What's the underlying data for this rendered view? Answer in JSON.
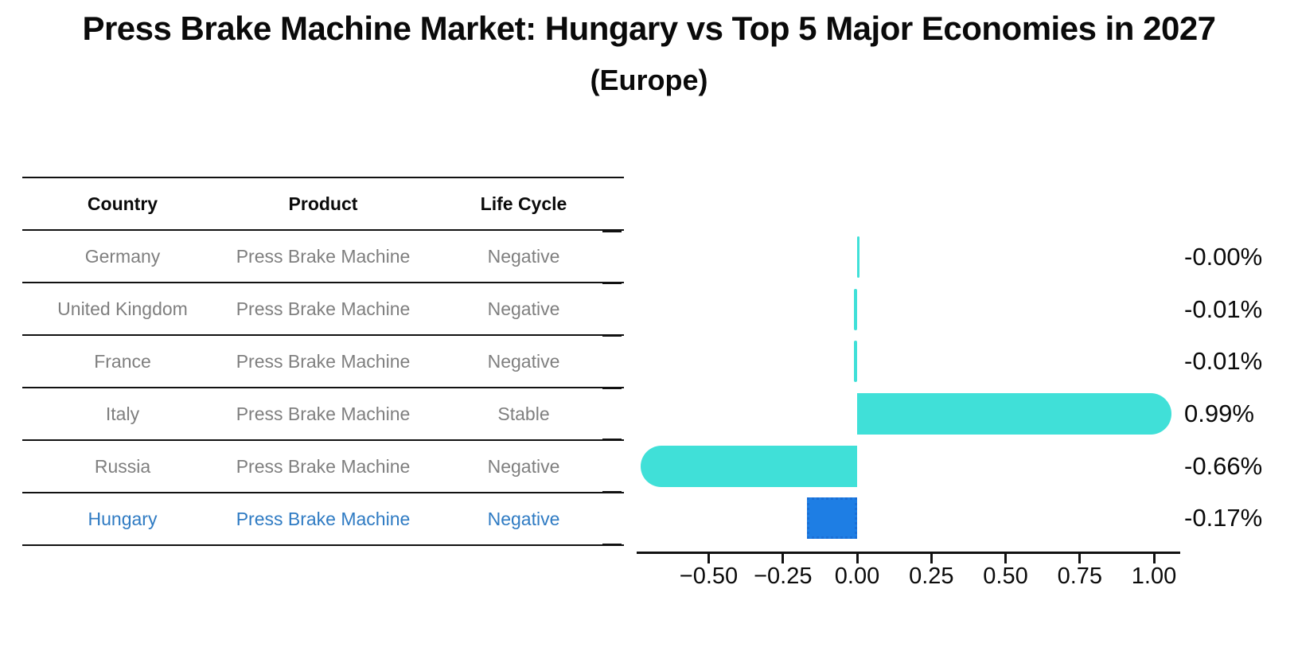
{
  "title": "Press Brake Machine Market: Hungary vs Top 5 Major Economies in 2027",
  "subtitle": "(Europe)",
  "table": {
    "headers": [
      "Country",
      "Product",
      "Life Cycle"
    ],
    "rows": [
      {
        "country": "Germany",
        "product": "Press Brake Machine",
        "life_cycle": "Negative",
        "highlight": false
      },
      {
        "country": "United Kingdom",
        "product": "Press Brake Machine",
        "life_cycle": "Negative",
        "highlight": false
      },
      {
        "country": "France",
        "product": "Press Brake Machine",
        "life_cycle": "Negative",
        "highlight": false
      },
      {
        "country": "Italy",
        "product": "Press Brake Machine",
        "life_cycle": "Stable",
        "highlight": false
      },
      {
        "country": "Russia",
        "product": "Press Brake Machine",
        "life_cycle": "Negative",
        "highlight": false
      },
      {
        "country": "Hungary",
        "product": "Press Brake Machine",
        "life_cycle": "Negative",
        "highlight": true
      }
    ]
  },
  "chart_data": {
    "type": "bar",
    "orientation": "horizontal",
    "title": "Press Brake Machine Market: Hungary vs Top 5 Major Economies in 2027 (Europe)",
    "categories": [
      "Germany",
      "United Kingdom",
      "France",
      "Italy",
      "Russia",
      "Hungary"
    ],
    "values": [
      -0.0,
      -0.01,
      -0.01,
      0.99,
      -0.66,
      -0.17
    ],
    "value_labels": [
      "-0.00%",
      "-0.01%",
      "-0.01%",
      "0.99%",
      "-0.66%",
      "-0.17%"
    ],
    "highlight_index": 5,
    "xlabel": "",
    "ylabel": "",
    "xlim": [
      -0.74,
      1.09
    ],
    "grid": false,
    "legend": false,
    "x_ticks": [
      -0.5,
      -0.25,
      0,
      0.25,
      0.5,
      0.75,
      1.0
    ],
    "x_tick_labels": [
      "−0.50",
      "−0.25",
      "0.00",
      "0.25",
      "0.50",
      "0.75",
      "1.00"
    ]
  },
  "colors": {
    "bar_default": "#40e0d8",
    "bar_highlight": "#1e7ee4",
    "bar_highlight_border": "#1a6fd6",
    "highlight_text": "#2f7bc3",
    "table_text": "#7f7f7f",
    "axis": "#111111",
    "text": "#0a0a0a"
  }
}
